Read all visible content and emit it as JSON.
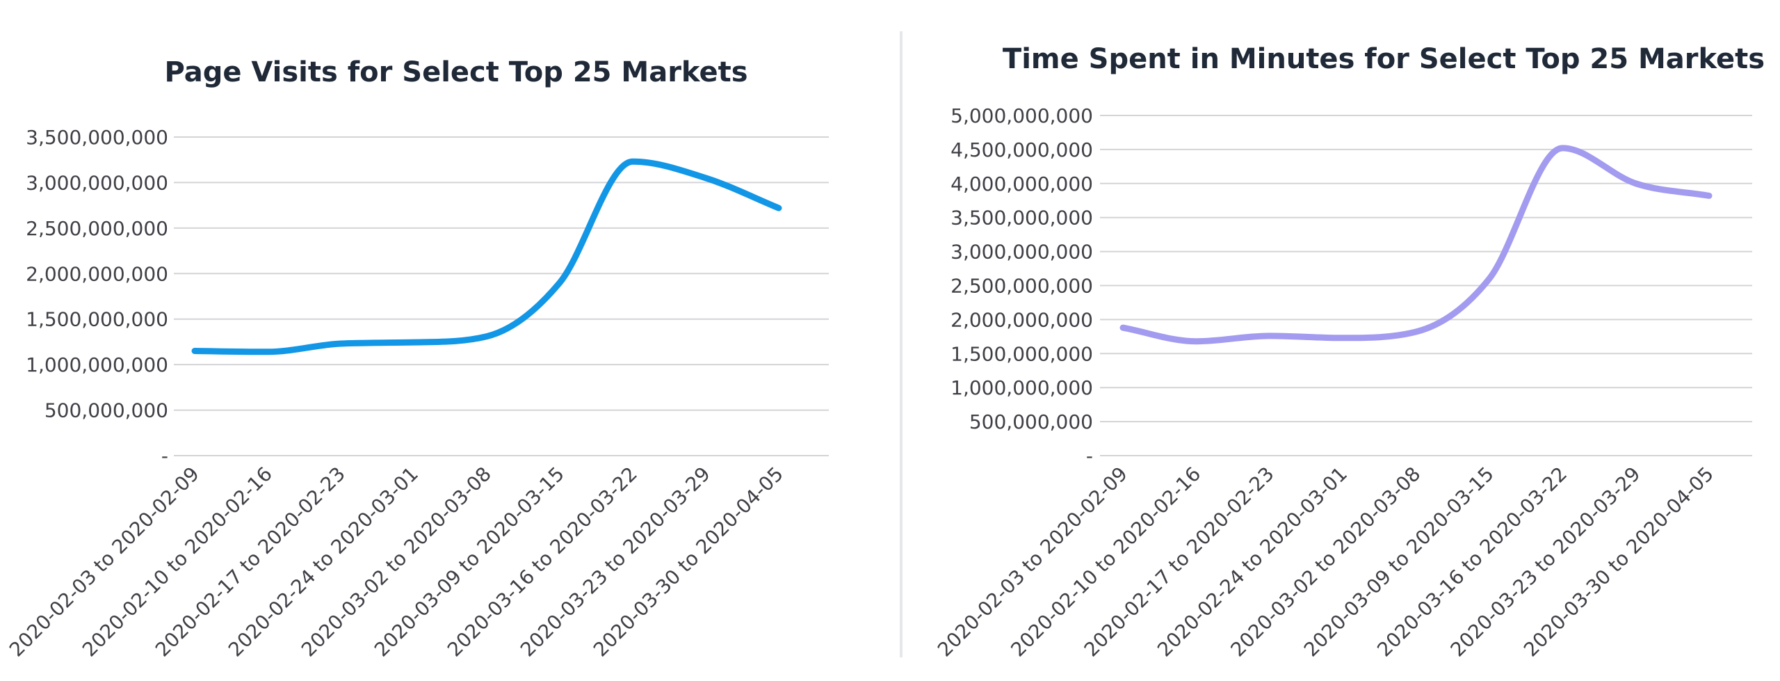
{
  "chart_data": [
    {
      "type": "line",
      "title": "Page Visits for Select Top 25 Markets",
      "categories": [
        "2020-02-03 to 2020-02-09",
        "2020-02-10 to 2020-02-16",
        "2020-02-17 to 2020-02-23",
        "2020-02-24 to 2020-03-01",
        "2020-03-02 to 2020-03-08",
        "2020-03-09 to 2020-03-15",
        "2020-03-16 to 2020-03-22",
        "2020-03-23 to 2020-03-29",
        "2020-03-30 to 2020-04-05"
      ],
      "series": [
        {
          "values": [
            1150000000,
            1140000000,
            1230000000,
            1245000000,
            1310000000,
            1900000000,
            3230000000,
            3050000000,
            2720000000
          ]
        }
      ],
      "yticks": [
        "-",
        "500,000,000",
        "1,000,000,000",
        "1,500,000,000",
        "2,000,000,000",
        "2,500,000,000",
        "3,000,000,000",
        "3,500,000,000"
      ],
      "ylim": [
        0,
        3500000000
      ],
      "ystep": 500000000,
      "grid": true,
      "color": "#1296e6"
    },
    {
      "type": "line",
      "title": "Time Spent in Minutes for Select Top 25 Markets",
      "categories": [
        "2020-02-03 to 2020-02-09",
        "2020-02-10 to 2020-02-16",
        "2020-02-17 to 2020-02-23",
        "2020-02-24 to 2020-03-01",
        "2020-03-02 to 2020-03-08",
        "2020-03-09 to 2020-03-15",
        "2020-03-16 to 2020-03-22",
        "2020-03-23 to 2020-03-29",
        "2020-03-30 to 2020-04-05"
      ],
      "series": [
        {
          "values": [
            1880000000,
            1680000000,
            1760000000,
            1730000000,
            1820000000,
            2600000000,
            4520000000,
            4000000000,
            3820000000
          ]
        }
      ],
      "yticks": [
        "-",
        "500,000,000",
        "1,000,000,000",
        "1,500,000,000",
        "2,000,000,000",
        "2,500,000,000",
        "3,000,000,000",
        "3,500,000,000",
        "4,000,000,000",
        "4,500,000,000",
        "5,000,000,000"
      ],
      "ylim": [
        0,
        5000000000
      ],
      "ystep": 500000000,
      "grid": true,
      "color": "#a29bf0"
    }
  ],
  "colors": {
    "grid": "#d4d4d8",
    "divider": "#e5e7eb"
  }
}
